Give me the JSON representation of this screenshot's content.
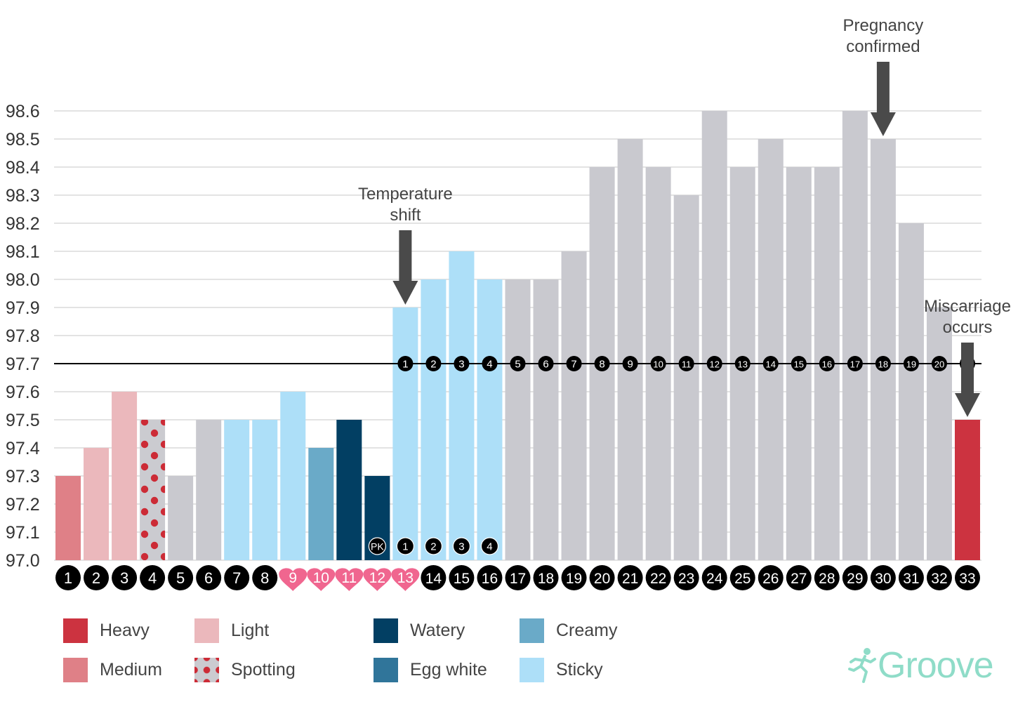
{
  "chart_data": {
    "type": "bar",
    "categories": [
      "1",
      "2",
      "3",
      "4",
      "5",
      "6",
      "7",
      "8",
      "9",
      "10",
      "11",
      "12",
      "13",
      "14",
      "15",
      "16",
      "17",
      "18",
      "19",
      "20",
      "21",
      "22",
      "23",
      "24",
      "25",
      "26",
      "27",
      "28",
      "29",
      "30",
      "31",
      "32",
      "33"
    ],
    "values": [
      97.3,
      97.4,
      97.6,
      97.5,
      97.3,
      97.5,
      97.5,
      97.5,
      97.6,
      97.4,
      97.5,
      97.3,
      97.9,
      98.0,
      98.1,
      98.0,
      98.0,
      98.0,
      98.1,
      98.4,
      98.5,
      98.4,
      98.3,
      98.6,
      98.4,
      98.5,
      98.4,
      98.4,
      98.6,
      98.5,
      98.2,
      97.9,
      97.5
    ],
    "categories_style": [
      "medium",
      "light",
      "light",
      "spotting",
      "none",
      "none",
      "sticky",
      "sticky",
      "sticky",
      "creamy",
      "watery",
      "watery",
      "sticky",
      "sticky",
      "sticky",
      "sticky",
      "none",
      "none",
      "none",
      "none",
      "none",
      "none",
      "none",
      "none",
      "none",
      "none",
      "none",
      "none",
      "none",
      "none",
      "none",
      "none",
      "heavy"
    ],
    "heart_days": [
      "9",
      "10",
      "11",
      "12",
      "13"
    ],
    "ylim": [
      97.0,
      98.6
    ],
    "yticks": [
      "97.0",
      "97.1",
      "97.2",
      "97.3",
      "97.4",
      "97.5",
      "97.6",
      "97.7",
      "97.8",
      "97.9",
      "98.0",
      "98.1",
      "98.2",
      "98.3",
      "98.4",
      "98.5",
      "98.6"
    ],
    "coverline": 97.7,
    "coverline_badges": [
      "1",
      "2",
      "3",
      "4",
      "5",
      "6",
      "7",
      "8",
      "9",
      "10",
      "11",
      "12",
      "13",
      "14",
      "15",
      "16",
      "17",
      "18",
      "19",
      "20",
      "21"
    ],
    "coverline_badges_start_day": "13",
    "bottom_badges": [
      {
        "day": "12",
        "text": "PK"
      },
      {
        "day": "13",
        "text": "1"
      },
      {
        "day": "14",
        "text": "2"
      },
      {
        "day": "15",
        "text": "3"
      },
      {
        "day": "16",
        "text": "4"
      }
    ],
    "annotations": [
      {
        "day": "13",
        "lines": [
          "Temperature",
          "shift"
        ]
      },
      {
        "day": "30",
        "lines": [
          "Pregnancy",
          "confirmed"
        ]
      },
      {
        "day": "33",
        "lines": [
          "Miscarriage",
          "occurs"
        ]
      }
    ],
    "grid": true,
    "title": "",
    "xlabel": "",
    "ylabel": ""
  },
  "colors": {
    "heavy": "#cc3340",
    "medium": "#df8087",
    "light": "#ebb8bc",
    "spotting_bg": "#cbcbd0",
    "spotting_dot": "#cc2b36",
    "none": "#c9c9cf",
    "watery": "#023f63",
    "egg_white": "#30759a",
    "creamy": "#6aaac8",
    "sticky": "#addff8",
    "heart": "#f0668f",
    "badge": "#000000",
    "grid": "#dadada",
    "arrow": "#4a4a4a",
    "brand": "#8fdcc8"
  },
  "legend": [
    {
      "key": "heavy",
      "label": "Heavy"
    },
    {
      "key": "medium",
      "label": "Medium"
    },
    {
      "key": "light",
      "label": "Light"
    },
    {
      "key": "spotting",
      "label": "Spotting"
    },
    {
      "key": "watery",
      "label": "Watery"
    },
    {
      "key": "egg_white",
      "label": "Egg white"
    },
    {
      "key": "creamy",
      "label": "Creamy"
    },
    {
      "key": "sticky",
      "label": "Sticky"
    }
  ],
  "brand": {
    "name": "Groove",
    "icon": "runner-icon"
  }
}
